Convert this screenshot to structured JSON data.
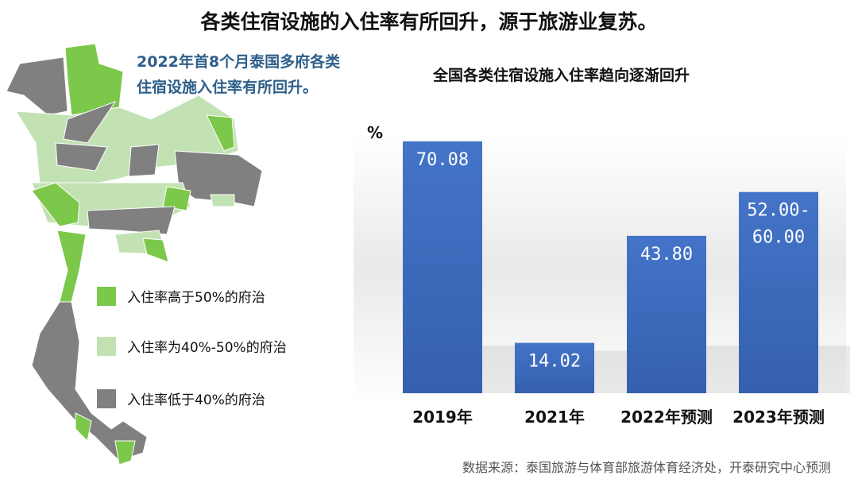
{
  "title": "各类住宿设施的入住率有所回升，源于旅游业复苏。",
  "map": {
    "subtitle_lines": [
      "2022年首8个月泰国多府各类",
      "住宿设施入住率有所回升。"
    ],
    "legend": [
      {
        "label": "入住率高于50%的府治",
        "color": "#7cc84a"
      },
      {
        "label": "入住率为40%-50%的府治",
        "color": "#c3e2b3"
      },
      {
        "label": "入住率低于40%的府治",
        "color": "#808080"
      }
    ]
  },
  "chart_data": {
    "type": "bar",
    "title": "全国各类住宿设施入住率趋向逐渐回升",
    "ylabel": "%",
    "categories": [
      "2019年",
      "2021年",
      "2022年预测",
      "2023年预测"
    ],
    "values": [
      70.08,
      14.02,
      43.8,
      [
        52.0,
        60.0
      ]
    ],
    "data_labels": [
      "70.08",
      "14.02",
      "43.80",
      "52.00-\n60.00"
    ],
    "ylim": [
      0,
      75
    ],
    "grid": false,
    "bar_color": "#3f6fc2"
  },
  "source": "数据来源：泰国旅游与体育部旅游体育经济处，开泰研究中心预测"
}
